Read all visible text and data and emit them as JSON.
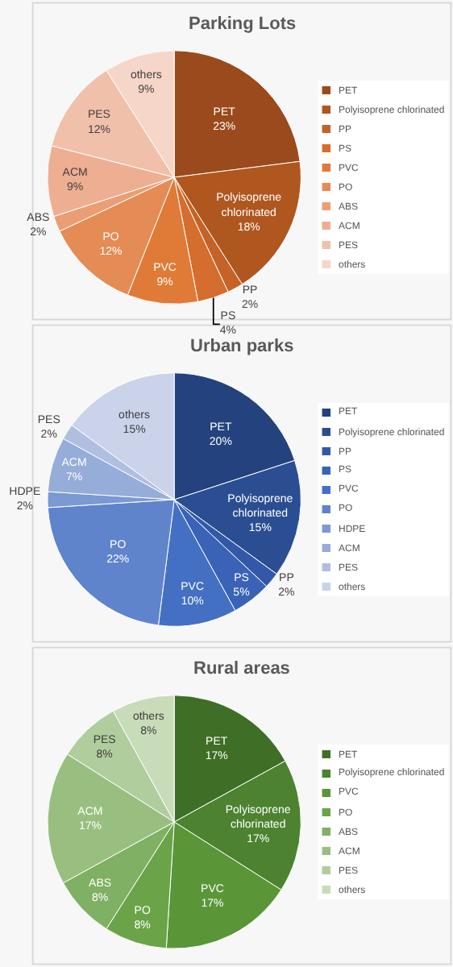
{
  "chart_data": [
    {
      "type": "pie",
      "title": "Parking Lots",
      "legend": "right",
      "data_labels": true,
      "categories": [
        "PET",
        "Polyisoprene chlorinated",
        "PP",
        "PS",
        "PVC",
        "PO",
        "ABS",
        "ACM",
        "PES",
        "others"
      ],
      "values": [
        23,
        18,
        2,
        4,
        9,
        12,
        2,
        9,
        12,
        9
      ],
      "value_labels": [
        "23%",
        "18%",
        "2%",
        "4%",
        "9%",
        "12%",
        "2%",
        "9%",
        "12%",
        "9%"
      ],
      "colors": [
        "#9a4a1c",
        "#b0561f",
        "#c46227",
        "#d46d2d",
        "#e07a37",
        "#e58b55",
        "#eb9e74",
        "#eeae92",
        "#f1c0aa",
        "#f5d6c8"
      ]
    },
    {
      "type": "pie",
      "title": "Urban parks",
      "legend": "right",
      "data_labels": true,
      "categories": [
        "PET",
        "Polyisoprene chlorinated",
        "PP",
        "PS",
        "PVC",
        "PO",
        "HDPE",
        "ACM",
        "PES",
        "others"
      ],
      "values": [
        20,
        15,
        2,
        5,
        10,
        22,
        2,
        7,
        2,
        15
      ],
      "value_labels": [
        "20%",
        "15%",
        "2%",
        "5%",
        "10%",
        "22%",
        "2%",
        "7%",
        "2%",
        "15%"
      ],
      "colors": [
        "#24427e",
        "#2b4d92",
        "#3358a8",
        "#3a63b8",
        "#4470c4",
        "#5f84cc",
        "#7b99d2",
        "#96acd9",
        "#b0bfe1",
        "#cad3ea"
      ]
    },
    {
      "type": "pie",
      "title": "Rural areas",
      "legend": "right",
      "data_labels": true,
      "categories": [
        "PET",
        "Polyisoprene chlorinated",
        "PVC",
        "PO",
        "ABS",
        "ACM",
        "PES",
        "others"
      ],
      "values": [
        17,
        17,
        17,
        8,
        8,
        17,
        8,
        8
      ],
      "value_labels": [
        "17%",
        "17%",
        "17%",
        "8%",
        "8%",
        "17%",
        "8%",
        "8%"
      ],
      "colors": [
        "#3f6e27",
        "#4c8230",
        "#5a9538",
        "#6ba448",
        "#80b063",
        "#98bf80",
        "#b0cd9d",
        "#c9dcba"
      ]
    }
  ]
}
